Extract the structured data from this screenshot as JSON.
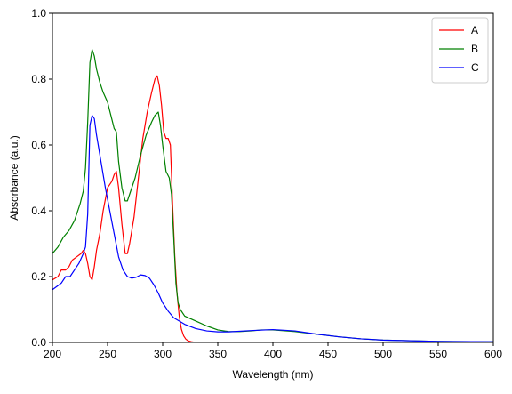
{
  "chart_data": {
    "type": "line",
    "title": "",
    "xlabel": "Wavelength (nm)",
    "ylabel": "Absorbance (a.u.)",
    "xlim": [
      200,
      600
    ],
    "ylim": [
      0,
      1.0
    ],
    "xticks": [
      200,
      250,
      300,
      350,
      400,
      450,
      500,
      550,
      600
    ],
    "xtick_labels": [
      "200",
      "250",
      "300",
      "350",
      "400",
      "450",
      "500",
      "550",
      "600"
    ],
    "yticks": [
      0,
      0.2,
      0.4,
      0.6,
      0.8,
      1.0
    ],
    "ytick_labels": [
      "0.0",
      "0.2",
      "0.4",
      "0.6",
      "0.8",
      "1.0"
    ],
    "grid": false,
    "legend_position": "top-right",
    "series": [
      {
        "name": "A",
        "color": "#ff0000",
        "x": [
          200,
          205,
          208,
          212,
          215,
          218,
          222,
          226,
          228,
          230,
          232,
          234,
          236,
          238,
          240,
          243,
          246,
          250,
          252,
          254,
          256,
          258,
          260,
          263,
          266,
          268,
          270,
          274,
          278,
          282,
          286,
          290,
          293,
          295,
          297,
          299,
          301,
          303,
          305,
          307,
          309,
          311,
          313,
          315,
          317,
          319,
          321,
          323,
          326,
          330,
          340,
          400,
          450,
          500,
          550,
          600
        ],
        "y": [
          0.19,
          0.2,
          0.22,
          0.22,
          0.23,
          0.25,
          0.26,
          0.27,
          0.28,
          0.27,
          0.24,
          0.2,
          0.19,
          0.23,
          0.28,
          0.33,
          0.4,
          0.47,
          0.48,
          0.49,
          0.51,
          0.52,
          0.47,
          0.36,
          0.27,
          0.27,
          0.3,
          0.38,
          0.5,
          0.62,
          0.7,
          0.76,
          0.8,
          0.81,
          0.78,
          0.72,
          0.64,
          0.62,
          0.62,
          0.6,
          0.42,
          0.26,
          0.15,
          0.08,
          0.04,
          0.02,
          0.01,
          0.005,
          0.002,
          0.0,
          0.0,
          0.0,
          0.0,
          0.0,
          0.0,
          0.0
        ]
      },
      {
        "name": "B",
        "color": "#008000",
        "x": [
          200,
          205,
          210,
          215,
          220,
          225,
          228,
          230,
          232,
          234,
          236,
          238,
          240,
          243,
          246,
          250,
          253,
          256,
          258,
          260,
          263,
          266,
          268,
          270,
          275,
          280,
          285,
          290,
          293,
          296,
          298,
          300,
          303,
          306,
          308,
          310,
          312,
          314,
          316,
          320,
          330,
          340,
          350,
          360,
          370,
          380,
          390,
          400,
          420,
          440,
          460,
          480,
          500,
          550,
          600
        ],
        "y": [
          0.27,
          0.29,
          0.32,
          0.34,
          0.37,
          0.42,
          0.46,
          0.53,
          0.67,
          0.85,
          0.89,
          0.87,
          0.83,
          0.79,
          0.76,
          0.73,
          0.69,
          0.65,
          0.64,
          0.55,
          0.47,
          0.43,
          0.43,
          0.45,
          0.5,
          0.57,
          0.63,
          0.67,
          0.69,
          0.7,
          0.66,
          0.6,
          0.52,
          0.5,
          0.45,
          0.32,
          0.18,
          0.12,
          0.1,
          0.08,
          0.065,
          0.05,
          0.038,
          0.033,
          0.033,
          0.035,
          0.038,
          0.038,
          0.033,
          0.025,
          0.017,
          0.011,
          0.007,
          0.003,
          0.002
        ]
      },
      {
        "name": "C",
        "color": "#0000ff",
        "x": [
          200,
          204,
          208,
          212,
          216,
          220,
          224,
          228,
          230,
          232,
          234,
          236,
          238,
          240,
          244,
          248,
          252,
          256,
          260,
          264,
          268,
          272,
          276,
          280,
          284,
          288,
          292,
          296,
          300,
          305,
          310,
          320,
          330,
          340,
          350,
          360,
          380,
          400,
          420,
          440,
          460,
          480,
          500,
          550,
          600
        ],
        "y": [
          0.16,
          0.17,
          0.18,
          0.2,
          0.2,
          0.22,
          0.24,
          0.27,
          0.29,
          0.39,
          0.66,
          0.69,
          0.68,
          0.63,
          0.55,
          0.47,
          0.4,
          0.33,
          0.26,
          0.22,
          0.2,
          0.195,
          0.198,
          0.205,
          0.203,
          0.195,
          0.175,
          0.15,
          0.12,
          0.095,
          0.075,
          0.055,
          0.042,
          0.035,
          0.032,
          0.032,
          0.036,
          0.039,
          0.035,
          0.025,
          0.017,
          0.011,
          0.007,
          0.003,
          0.002
        ]
      }
    ]
  }
}
